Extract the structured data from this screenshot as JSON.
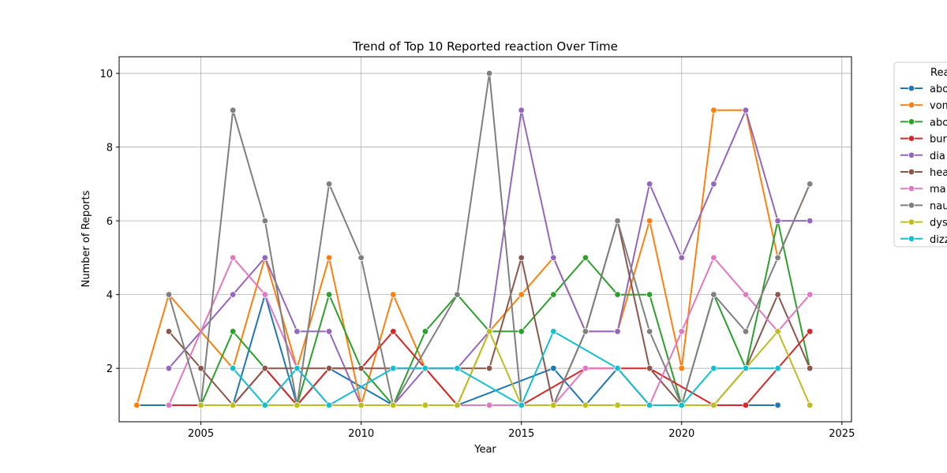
{
  "chart_data": {
    "type": "line",
    "title": "Trend of Top 10 Reported reaction Over Time",
    "xlabel": "Year",
    "ylabel": "Number of Reports",
    "xlim": [
      2002.45,
      2025.3
    ],
    "ylim": [
      0.55,
      10.45
    ],
    "xticks": [
      2005,
      2010,
      2015,
      2020,
      2025
    ],
    "yticks": [
      2,
      4,
      6,
      8,
      10
    ],
    "grid": true,
    "legend": {
      "title": "Rea",
      "placement": "outside-right"
    },
    "series": [
      {
        "name": "abo",
        "color": "#1f77b4",
        "points": [
          [
            2003,
            1
          ],
          [
            2004,
            1
          ],
          [
            2005,
            1
          ],
          [
            2006,
            1
          ],
          [
            2007,
            4
          ],
          [
            2008,
            1
          ],
          [
            2009,
            2
          ],
          [
            2011,
            1
          ],
          [
            2012,
            1
          ],
          [
            2013,
            1
          ],
          [
            2016,
            2
          ],
          [
            2017,
            1
          ],
          [
            2018,
            2
          ],
          [
            2019,
            1
          ],
          [
            2020,
            1
          ],
          [
            2021,
            1
          ],
          [
            2022,
            1
          ],
          [
            2023,
            1
          ]
        ]
      },
      {
        "name": "vom",
        "color": "#ff7f0e",
        "points": [
          [
            2003,
            1
          ],
          [
            2004,
            4
          ],
          [
            2006,
            2
          ],
          [
            2007,
            5
          ],
          [
            2008,
            2
          ],
          [
            2009,
            5
          ],
          [
            2010,
            1
          ],
          [
            2011,
            4
          ],
          [
            2012,
            2
          ],
          [
            2013,
            1
          ],
          [
            2014,
            3
          ],
          [
            2015,
            4
          ],
          [
            2016,
            5
          ],
          [
            2017,
            3
          ],
          [
            2018,
            3
          ],
          [
            2019,
            6
          ],
          [
            2020,
            2
          ],
          [
            2021,
            9
          ],
          [
            2022,
            9
          ],
          [
            2023,
            5
          ],
          [
            2024,
            7
          ]
        ]
      },
      {
        "name": "abo",
        "color": "#2ca02c",
        "points": [
          [
            2005,
            1
          ],
          [
            2006,
            3
          ],
          [
            2007,
            2
          ],
          [
            2008,
            1
          ],
          [
            2009,
            4
          ],
          [
            2010,
            2
          ],
          [
            2011,
            1
          ],
          [
            2012,
            3
          ],
          [
            2013,
            4
          ],
          [
            2014,
            3
          ],
          [
            2015,
            3
          ],
          [
            2016,
            4
          ],
          [
            2017,
            5
          ],
          [
            2018,
            4
          ],
          [
            2019,
            4
          ],
          [
            2020,
            1
          ],
          [
            2021,
            4
          ],
          [
            2022,
            2
          ],
          [
            2023,
            6
          ],
          [
            2024,
            2
          ]
        ]
      },
      {
        "name": "bur",
        "color": "#d62728",
        "points": [
          [
            2004,
            1
          ],
          [
            2005,
            1
          ],
          [
            2006,
            1
          ],
          [
            2007,
            2
          ],
          [
            2008,
            1
          ],
          [
            2009,
            2
          ],
          [
            2010,
            2
          ],
          [
            2011,
            3
          ],
          [
            2012,
            2
          ],
          [
            2013,
            1
          ],
          [
            2015,
            1
          ],
          [
            2017,
            2
          ],
          [
            2018,
            2
          ],
          [
            2019,
            2
          ],
          [
            2021,
            1
          ],
          [
            2022,
            1
          ],
          [
            2024,
            3
          ]
        ]
      },
      {
        "name": "dia",
        "color": "#9467bd",
        "points": [
          [
            2004,
            2
          ],
          [
            2006,
            4
          ],
          [
            2007,
            5
          ],
          [
            2008,
            3
          ],
          [
            2009,
            3
          ],
          [
            2010,
            1
          ],
          [
            2011,
            1
          ],
          [
            2012,
            2
          ],
          [
            2013,
            2
          ],
          [
            2014,
            3
          ],
          [
            2015,
            9
          ],
          [
            2016,
            5
          ],
          [
            2017,
            3
          ],
          [
            2018,
            3
          ],
          [
            2019,
            7
          ],
          [
            2020,
            5
          ],
          [
            2021,
            7
          ],
          [
            2022,
            9
          ],
          [
            2023,
            6
          ],
          [
            2024,
            6
          ]
        ]
      },
      {
        "name": "hea",
        "color": "#8c564b",
        "points": [
          [
            2004,
            3
          ],
          [
            2005,
            2
          ],
          [
            2006,
            1
          ],
          [
            2007,
            2
          ],
          [
            2008,
            2
          ],
          [
            2009,
            2
          ],
          [
            2010,
            2
          ],
          [
            2011,
            2
          ],
          [
            2012,
            2
          ],
          [
            2013,
            2
          ],
          [
            2014,
            2
          ],
          [
            2015,
            5
          ],
          [
            2016,
            1
          ],
          [
            2017,
            3
          ],
          [
            2018,
            6
          ],
          [
            2019,
            2
          ],
          [
            2020,
            1
          ],
          [
            2021,
            1
          ],
          [
            2022,
            2
          ],
          [
            2023,
            4
          ],
          [
            2024,
            2
          ]
        ]
      },
      {
        "name": "ma",
        "color": "#e377c2",
        "points": [
          [
            2004,
            1
          ],
          [
            2006,
            5
          ],
          [
            2007,
            4
          ],
          [
            2008,
            2
          ],
          [
            2009,
            1
          ],
          [
            2010,
            1
          ],
          [
            2011,
            1
          ],
          [
            2012,
            1
          ],
          [
            2013,
            1
          ],
          [
            2014,
            1
          ],
          [
            2015,
            1
          ],
          [
            2016,
            1
          ],
          [
            2017,
            2
          ],
          [
            2018,
            2
          ],
          [
            2019,
            1
          ],
          [
            2020,
            3
          ],
          [
            2021,
            5
          ],
          [
            2022,
            4
          ],
          [
            2023,
            3
          ],
          [
            2024,
            4
          ]
        ]
      },
      {
        "name": "nau",
        "color": "#7f7f7f",
        "points": [
          [
            2004,
            4
          ],
          [
            2005,
            1
          ],
          [
            2006,
            9
          ],
          [
            2007,
            6
          ],
          [
            2008,
            1
          ],
          [
            2009,
            7
          ],
          [
            2010,
            5
          ],
          [
            2011,
            1
          ],
          [
            2013,
            4
          ],
          [
            2014,
            10
          ],
          [
            2015,
            1
          ],
          [
            2016,
            1
          ],
          [
            2017,
            3
          ],
          [
            2018,
            6
          ],
          [
            2019,
            3
          ],
          [
            2020,
            1
          ],
          [
            2021,
            4
          ],
          [
            2022,
            3
          ],
          [
            2023,
            5
          ],
          [
            2024,
            7
          ]
        ]
      },
      {
        "name": "dys",
        "color": "#bcbd22",
        "points": [
          [
            2005,
            1
          ],
          [
            2006,
            1
          ],
          [
            2007,
            1
          ],
          [
            2008,
            1
          ],
          [
            2009,
            1
          ],
          [
            2010,
            1
          ],
          [
            2011,
            1
          ],
          [
            2012,
            1
          ],
          [
            2013,
            1
          ],
          [
            2014,
            3
          ],
          [
            2015,
            1
          ],
          [
            2016,
            1
          ],
          [
            2017,
            1
          ],
          [
            2018,
            1
          ],
          [
            2019,
            1
          ],
          [
            2020,
            1
          ],
          [
            2021,
            1
          ],
          [
            2022,
            2
          ],
          [
            2023,
            3
          ],
          [
            2024,
            1
          ]
        ]
      },
      {
        "name": "dizz",
        "color": "#17becf",
        "points": [
          [
            2006,
            2
          ],
          [
            2007,
            1
          ],
          [
            2008,
            2
          ],
          [
            2009,
            1
          ],
          [
            2011,
            2
          ],
          [
            2012,
            2
          ],
          [
            2013,
            2
          ],
          [
            2015,
            1
          ],
          [
            2016,
            3
          ],
          [
            2018,
            2
          ],
          [
            2019,
            1
          ],
          [
            2020,
            1
          ],
          [
            2021,
            2
          ],
          [
            2022,
            2
          ],
          [
            2023,
            2
          ]
        ]
      }
    ]
  }
}
